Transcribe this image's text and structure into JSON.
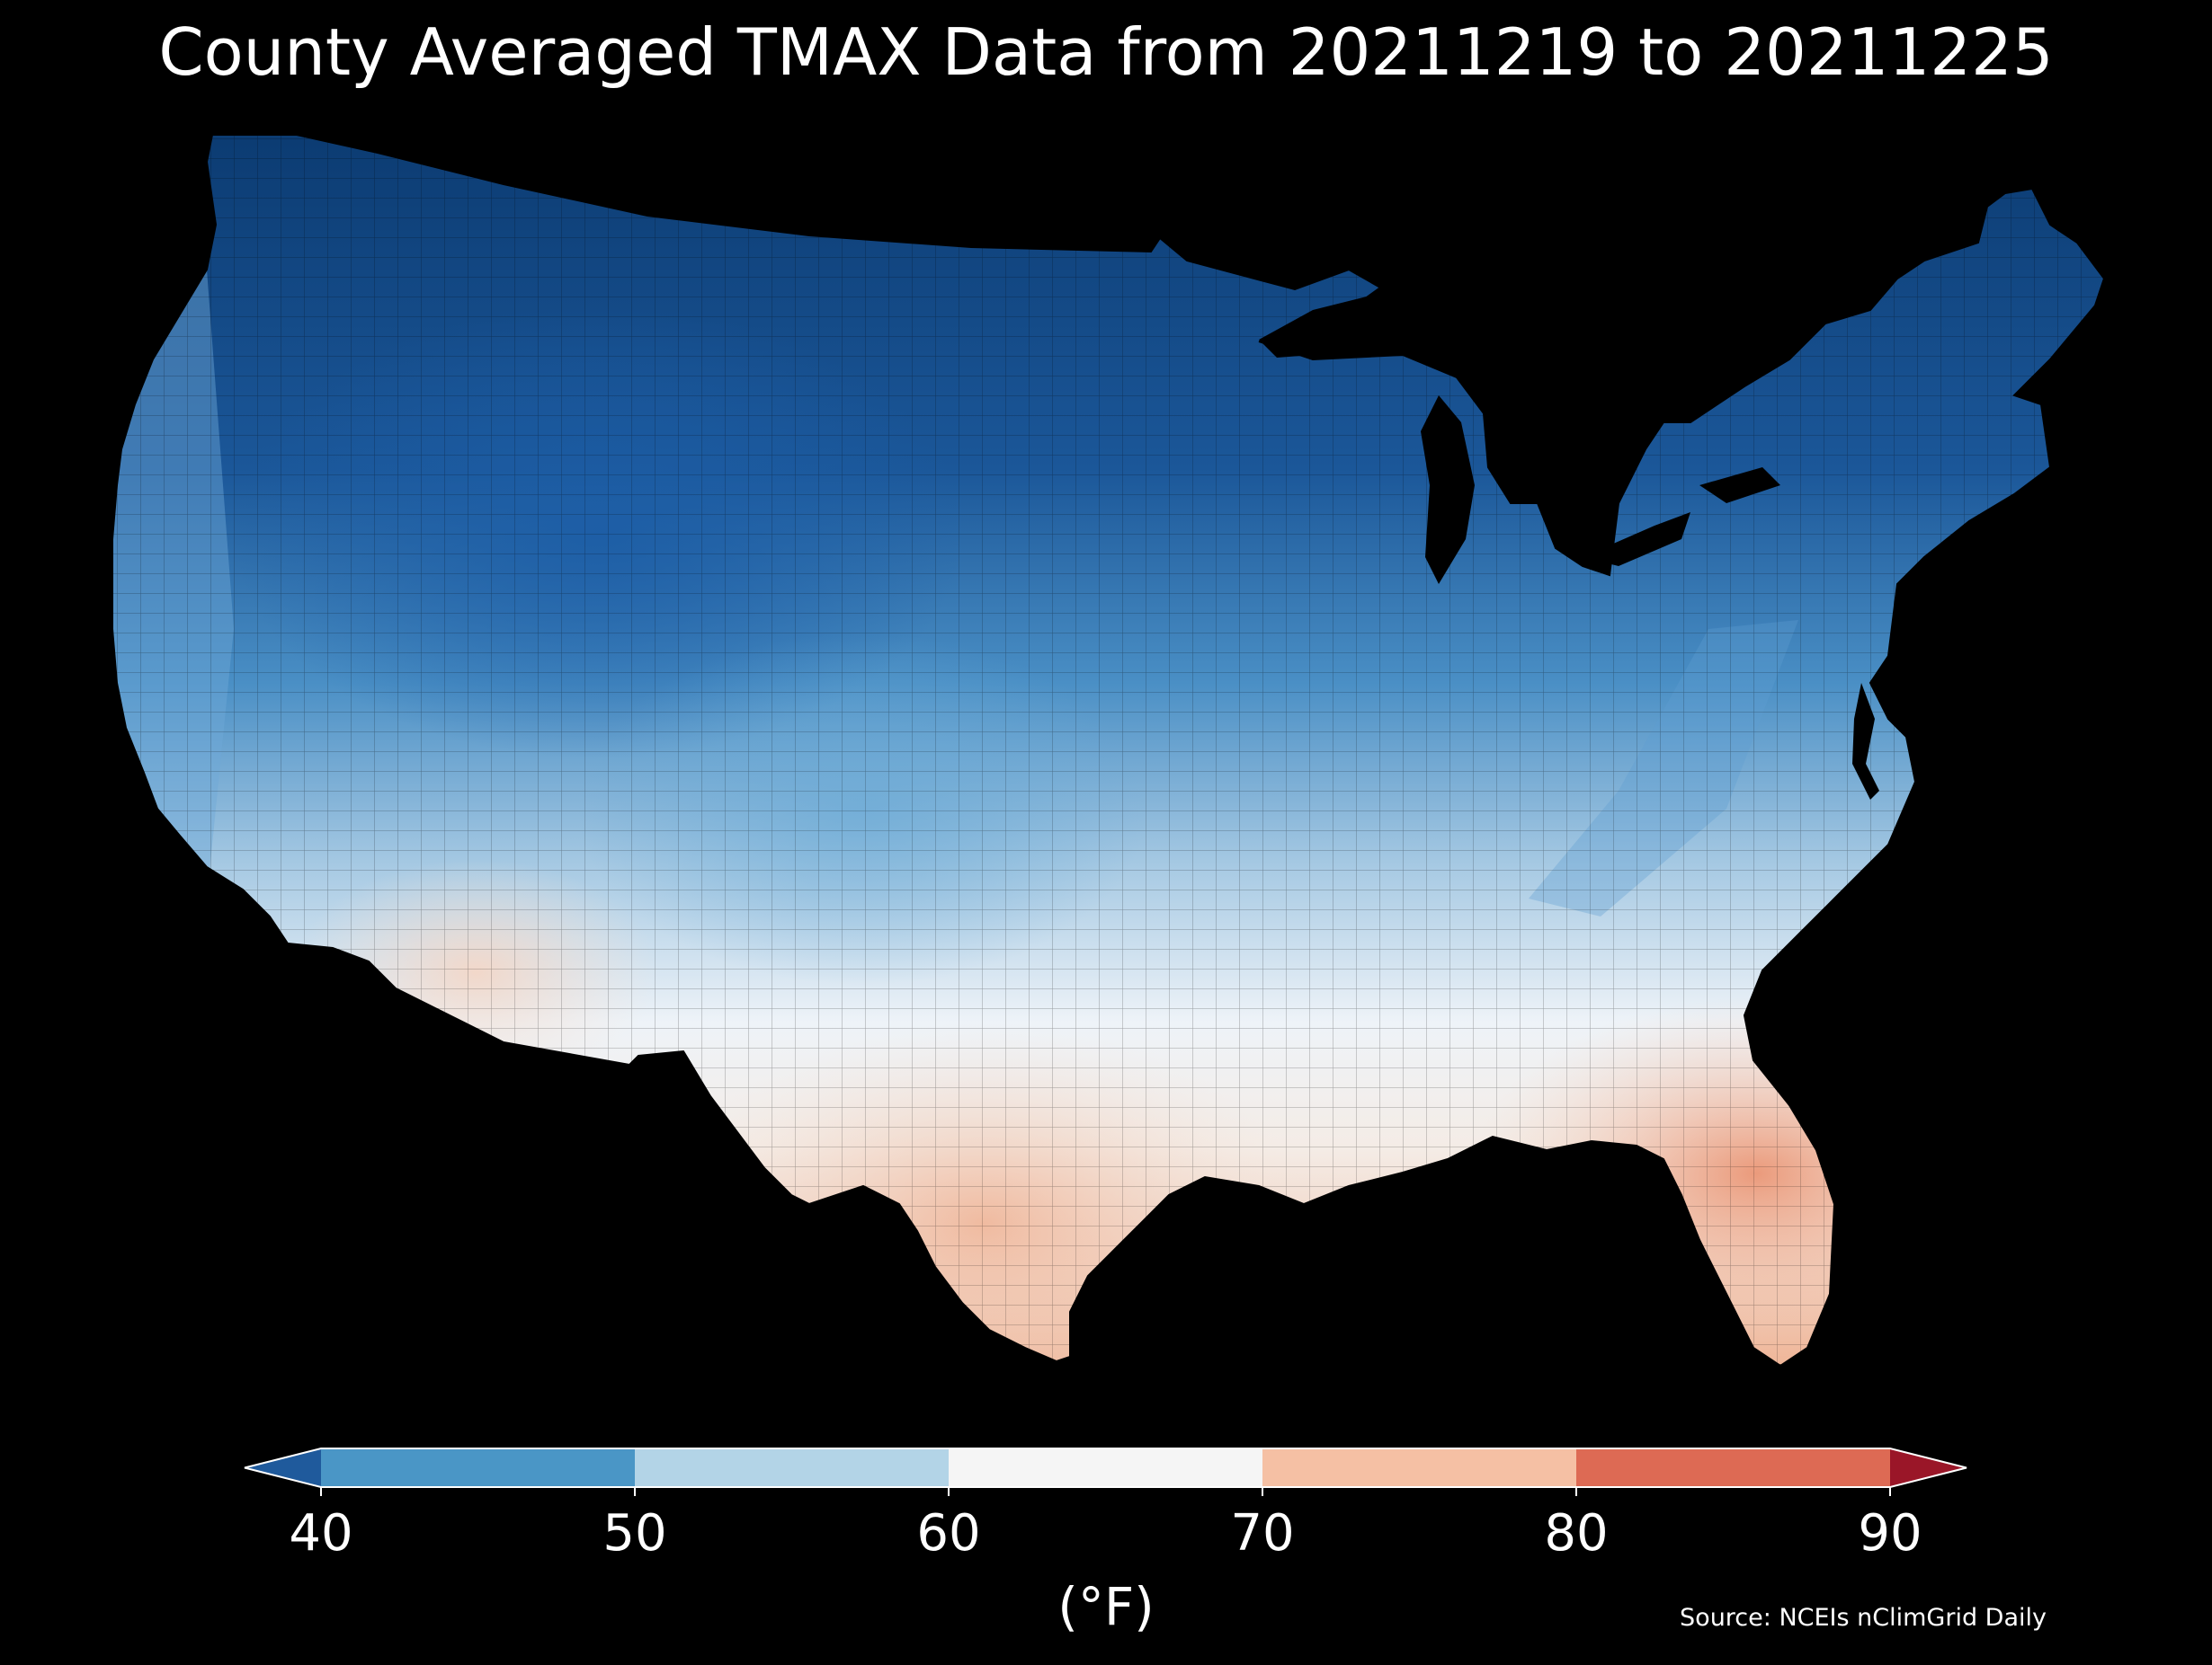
{
  "title": "County Averaged TMAX Data from 20211219 to 20211225",
  "colorbar": {
    "unit_label": "(°F)",
    "ticks": [
      "40",
      "50",
      "60",
      "70",
      "80",
      "90"
    ],
    "bins": [
      {
        "range": "<40",
        "color": "#1f5a9c"
      },
      {
        "range": "40-50",
        "color": "#4a96c6"
      },
      {
        "range": "50-60",
        "color": "#b3d4e7"
      },
      {
        "range": "60-70",
        "color": "#f5f5f5"
      },
      {
        "range": "70-80",
        "color": "#f5c0a4"
      },
      {
        "range": "80-90",
        "color": "#dd6a54"
      },
      {
        "range": ">90",
        "color": "#9a1628"
      }
    ]
  },
  "source": "Source: NCEIs nClimGrid Daily",
  "map": {
    "region": "Contiguous United States counties",
    "variable": "TMAX",
    "regional_pattern": [
      {
        "region": "Northern Plains / Upper Midwest / Northeast",
        "approx_tmax_f": "below 40",
        "color": "#0b3a70"
      },
      {
        "region": "Northern Rockies / Great Basin",
        "approx_tmax_f": "35-45",
        "color": "#2a6db0"
      },
      {
        "region": "Pacific Northwest coast",
        "approx_tmax_f": "45-50",
        "color": "#5fa0d0"
      },
      {
        "region": "Central Plains / Ohio Valley",
        "approx_tmax_f": "45-55",
        "color": "#7ab4dc"
      },
      {
        "region": "Southern California / Southwest",
        "approx_tmax_f": "55-65",
        "color": "#d3e5f1"
      },
      {
        "region": "Southern Plains / Gulf states",
        "approx_tmax_f": "60-70",
        "color": "#f2f2f2"
      },
      {
        "region": "South Texas / South Arizona",
        "approx_tmax_f": "70-75",
        "color": "#f6d9c8"
      },
      {
        "region": "Florida peninsula",
        "approx_tmax_f": "75-80",
        "color": "#efa584"
      }
    ]
  }
}
